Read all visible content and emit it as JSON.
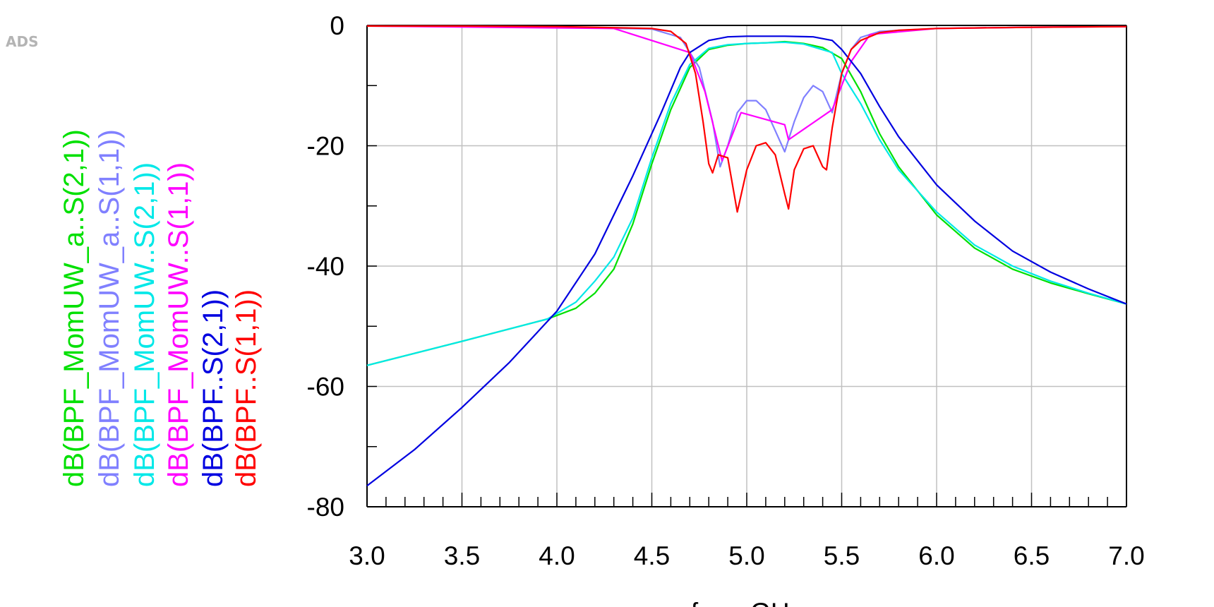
{
  "logo": "ADS",
  "chart_data": {
    "type": "line",
    "xlabel": "freq, GHz",
    "ylabel": "",
    "xlim": [
      3.0,
      7.0
    ],
    "ylim": [
      -80,
      0
    ],
    "xticks": [
      "3.0",
      "3.5",
      "4.0",
      "4.5",
      "5.0",
      "5.5",
      "6.0",
      "6.5",
      "7.0"
    ],
    "yticks": [
      "0",
      "-20",
      "-40",
      "-60",
      "-80"
    ],
    "grid": true,
    "legend_position": "left, rotated vertical",
    "series": [
      {
        "name": "dB(BPF_MomUW_a..S(2,1))",
        "color": "#00e000",
        "points": [
          [
            3.0,
            -56.5
          ],
          [
            3.5,
            -52.5
          ],
          [
            3.95,
            -48.8
          ],
          [
            4.1,
            -47.0
          ],
          [
            4.2,
            -44.5
          ],
          [
            4.3,
            -40.5
          ],
          [
            4.4,
            -33.0
          ],
          [
            4.5,
            -23.0
          ],
          [
            4.6,
            -14.0
          ],
          [
            4.7,
            -7.0
          ],
          [
            4.8,
            -4.0
          ],
          [
            4.9,
            -3.3
          ],
          [
            5.0,
            -3.0
          ],
          [
            5.1,
            -2.9
          ],
          [
            5.2,
            -2.7
          ],
          [
            5.3,
            -3.0
          ],
          [
            5.4,
            -3.7
          ],
          [
            5.5,
            -5.5
          ],
          [
            5.6,
            -11.0
          ],
          [
            5.7,
            -18.0
          ],
          [
            5.8,
            -23.5
          ],
          [
            6.0,
            -31.5
          ],
          [
            6.2,
            -37.0
          ],
          [
            6.4,
            -40.5
          ],
          [
            6.6,
            -42.8
          ],
          [
            6.8,
            -44.6
          ],
          [
            7.0,
            -46.3
          ]
        ]
      },
      {
        "name": "dB(BPF_MomUW_a..S(1,1))",
        "color": "#8080ff",
        "points": [
          [
            3.0,
            -0.1
          ],
          [
            3.5,
            -0.2
          ],
          [
            4.0,
            -0.3
          ],
          [
            4.5,
            -0.6
          ],
          [
            4.65,
            -2.0
          ],
          [
            4.75,
            -7.0
          ],
          [
            4.82,
            -16.0
          ],
          [
            4.86,
            -23.5
          ],
          [
            4.9,
            -20.0
          ],
          [
            4.95,
            -14.5
          ],
          [
            5.0,
            -12.5
          ],
          [
            5.05,
            -12.5
          ],
          [
            5.1,
            -14.0
          ],
          [
            5.15,
            -17.5
          ],
          [
            5.2,
            -21.0
          ],
          [
            5.25,
            -16.0
          ],
          [
            5.3,
            -12.0
          ],
          [
            5.35,
            -10.0
          ],
          [
            5.4,
            -11.0
          ],
          [
            5.45,
            -14.5
          ],
          [
            5.5,
            -8.0
          ],
          [
            5.55,
            -4.0
          ],
          [
            5.6,
            -2.0
          ],
          [
            5.7,
            -1.0
          ],
          [
            6.0,
            -0.5
          ],
          [
            6.5,
            -0.3
          ],
          [
            7.0,
            -0.2
          ]
        ]
      },
      {
        "name": "dB(BPF_MomUW..S(2,1))",
        "color": "#00e8e8",
        "points": [
          [
            3.0,
            -56.5
          ],
          [
            3.5,
            -52.5
          ],
          [
            3.95,
            -48.8
          ],
          [
            4.1,
            -46.0
          ],
          [
            4.2,
            -42.5
          ],
          [
            4.3,
            -38.5
          ],
          [
            4.4,
            -32.0
          ],
          [
            4.5,
            -22.0
          ],
          [
            4.6,
            -13.0
          ],
          [
            4.7,
            -6.5
          ],
          [
            4.8,
            -3.8
          ],
          [
            4.9,
            -3.2
          ],
          [
            5.0,
            -3.0
          ],
          [
            5.1,
            -2.9
          ],
          [
            5.2,
            -2.8
          ],
          [
            5.3,
            -3.1
          ],
          [
            5.45,
            -4.5
          ],
          [
            5.5,
            -8.0
          ],
          [
            5.6,
            -13.0
          ],
          [
            5.7,
            -19.0
          ],
          [
            5.8,
            -24.0
          ],
          [
            6.0,
            -31.0
          ],
          [
            6.2,
            -36.5
          ],
          [
            6.4,
            -40.0
          ],
          [
            6.6,
            -42.5
          ],
          [
            6.8,
            -44.5
          ],
          [
            7.0,
            -46.3
          ]
        ]
      },
      {
        "name": "dB(BPF_MomUW..S(1,1))",
        "color": "#ff00ff",
        "points": [
          [
            3.0,
            -0.1
          ],
          [
            4.3,
            -0.5
          ],
          [
            4.7,
            -4.5
          ],
          [
            4.78,
            -11.0
          ],
          [
            4.87,
            -22.5
          ],
          [
            4.97,
            -14.5
          ],
          [
            5.2,
            -16.5
          ],
          [
            5.22,
            -19.0
          ],
          [
            5.45,
            -14.0
          ],
          [
            5.55,
            -6.0
          ],
          [
            5.65,
            -1.5
          ],
          [
            6.0,
            -0.5
          ],
          [
            6.5,
            -0.3
          ],
          [
            7.0,
            -0.2
          ]
        ]
      },
      {
        "name": "dB(BPF..S(2,1))",
        "color": "#0000e0",
        "points": [
          [
            3.0,
            -76.5
          ],
          [
            3.25,
            -70.5
          ],
          [
            3.5,
            -63.5
          ],
          [
            3.75,
            -56.0
          ],
          [
            4.0,
            -47.5
          ],
          [
            4.2,
            -38.0
          ],
          [
            4.4,
            -25.0
          ],
          [
            4.55,
            -14.5
          ],
          [
            4.65,
            -7.0
          ],
          [
            4.7,
            -4.5
          ],
          [
            4.8,
            -2.5
          ],
          [
            4.9,
            -1.9
          ],
          [
            5.0,
            -1.8
          ],
          [
            5.2,
            -1.8
          ],
          [
            5.35,
            -1.9
          ],
          [
            5.45,
            -2.5
          ],
          [
            5.5,
            -4.0
          ],
          [
            5.6,
            -8.0
          ],
          [
            5.7,
            -13.5
          ],
          [
            5.8,
            -18.5
          ],
          [
            5.9,
            -22.5
          ],
          [
            6.0,
            -26.5
          ],
          [
            6.2,
            -32.5
          ],
          [
            6.4,
            -37.5
          ],
          [
            6.6,
            -41.0
          ],
          [
            6.8,
            -43.8
          ],
          [
            7.0,
            -46.3
          ]
        ]
      },
      {
        "name": "dB(BPF..S(1,1))",
        "color": "#ff0000",
        "points": [
          [
            3.0,
            -0.1
          ],
          [
            3.5,
            -0.1
          ],
          [
            4.0,
            -0.2
          ],
          [
            4.5,
            -0.5
          ],
          [
            4.6,
            -1.0
          ],
          [
            4.68,
            -3.0
          ],
          [
            4.73,
            -8.0
          ],
          [
            4.77,
            -16.0
          ],
          [
            4.8,
            -23.0
          ],
          [
            4.82,
            -24.5
          ],
          [
            4.85,
            -21.5
          ],
          [
            4.9,
            -22.0
          ],
          [
            4.95,
            -31.0
          ],
          [
            5.0,
            -24.0
          ],
          [
            5.05,
            -20.0
          ],
          [
            5.1,
            -19.5
          ],
          [
            5.15,
            -21.5
          ],
          [
            5.2,
            -28.0
          ],
          [
            5.22,
            -30.5
          ],
          [
            5.25,
            -24.0
          ],
          [
            5.3,
            -20.5
          ],
          [
            5.35,
            -20.0
          ],
          [
            5.4,
            -23.5
          ],
          [
            5.42,
            -24.0
          ],
          [
            5.45,
            -17.0
          ],
          [
            5.5,
            -8.0
          ],
          [
            5.55,
            -4.0
          ],
          [
            5.6,
            -2.5
          ],
          [
            5.7,
            -1.2
          ],
          [
            5.8,
            -0.8
          ],
          [
            6.0,
            -0.5
          ],
          [
            6.5,
            -0.3
          ],
          [
            7.0,
            -0.2
          ]
        ]
      }
    ]
  }
}
